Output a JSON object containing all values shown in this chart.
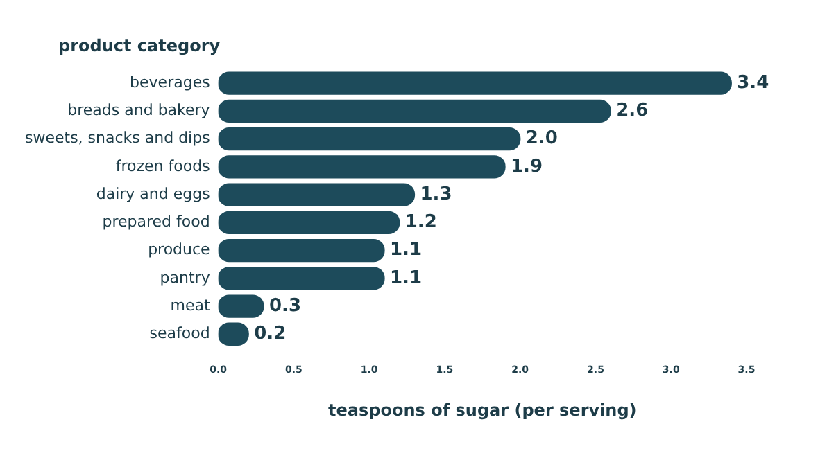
{
  "chart_data": {
    "type": "bar",
    "orientation": "horizontal",
    "ylabel": "product category",
    "xlabel": "teaspoons of sugar (per serving)",
    "categories": [
      "beverages",
      "breads and bakery",
      "sweets, snacks and dips",
      "frozen foods",
      "dairy and eggs",
      "prepared food",
      "produce",
      "pantry",
      "meat",
      "seafood"
    ],
    "values": [
      3.4,
      2.6,
      2.0,
      1.9,
      1.3,
      1.2,
      1.1,
      1.1,
      0.3,
      0.2
    ],
    "value_labels": [
      "3.4",
      "2.6",
      "2.0",
      "1.9",
      "1.3",
      "1.2",
      "1.1",
      "1.1",
      "0.3",
      "0.2"
    ],
    "color": "#1d4b5b",
    "xlim": [
      0,
      3.5
    ],
    "xticks": [
      {
        "value": 0,
        "label": "0.0"
      },
      {
        "value": 0.5,
        "label": "0.5"
      },
      {
        "value": 1,
        "label": "1.0"
      },
      {
        "value": 1.5,
        "label": "1.5"
      },
      {
        "value": 2,
        "label": "2.0"
      },
      {
        "value": 2.5,
        "label": "2.5"
      },
      {
        "value": 3,
        "label": "3.0"
      },
      {
        "value": 3.5,
        "label": "3.5"
      }
    ],
    "grid": false,
    "legend": false
  }
}
